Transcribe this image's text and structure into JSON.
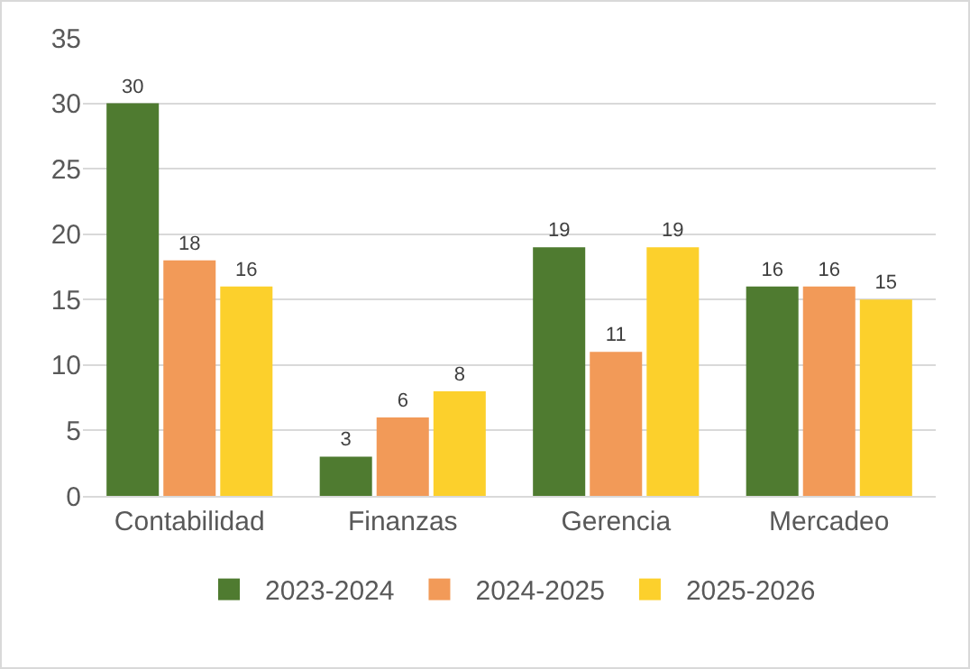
{
  "chart_data": {
    "type": "bar",
    "categories": [
      "Contabilidad",
      "Finanzas",
      "Gerencia",
      "Mercadeo"
    ],
    "series": [
      {
        "name": "2023-2024",
        "color": "#4f7b30",
        "values": [
          30,
          3,
          19,
          16
        ]
      },
      {
        "name": "2024-2025",
        "color": "#f29a58",
        "values": [
          18,
          6,
          11,
          16
        ]
      },
      {
        "name": "2025-2026",
        "color": "#fcd02c",
        "values": [
          16,
          8,
          19,
          15
        ]
      }
    ],
    "ylim": [
      0,
      35
    ],
    "yticks": [
      0,
      5,
      10,
      15,
      20,
      25,
      30,
      35
    ],
    "grid": "y",
    "legend": "bottom",
    "data_labels": true
  }
}
